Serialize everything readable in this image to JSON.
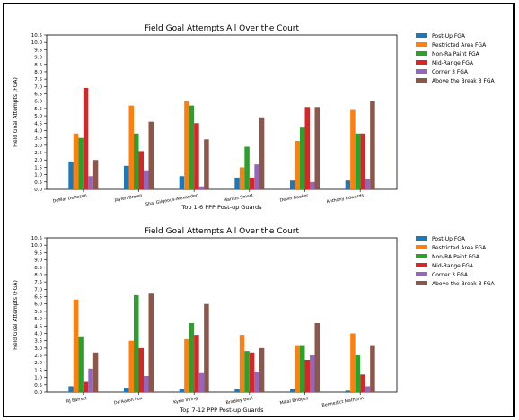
{
  "colors": {
    "series": [
      "#1f77b4",
      "#ff7f0e",
      "#2ca02c",
      "#d62728",
      "#9467bd",
      "#8c564b"
    ]
  },
  "chart_data": [
    {
      "type": "bar",
      "title": "Field Goal Attempts All Over the Court",
      "xlabel": "Top 1-6 PPP Post-up Guards",
      "ylabel": "Field Goal Attempts (FGA)",
      "ylim": [
        0,
        10.5
      ],
      "yticks": [
        "0.0",
        "0.5",
        "1.0",
        "1.5",
        "2.0",
        "2.5",
        "3.0",
        "3.5",
        "4.0",
        "4.5",
        "5.0",
        "5.5",
        "6.0",
        "6.5",
        "7.0",
        "7.5",
        "8.0",
        "8.5",
        "9.0",
        "9.5",
        "10.0",
        "10.5"
      ],
      "grid": false,
      "legend": "outside-right",
      "categories": [
        "DeMar DeRozan",
        "Jaylen Brown",
        "Shai Gilgeous-Alexander",
        "Marcus Smart",
        "Devin Booker",
        "Anthony Edwards"
      ],
      "series": [
        {
          "name": "Post-Up FGA",
          "values": [
            1.9,
            1.6,
            0.9,
            0.8,
            0.6,
            0.6
          ]
        },
        {
          "name": "Restricted Area FGA",
          "values": [
            3.8,
            5.7,
            6.0,
            1.5,
            3.3,
            5.4
          ]
        },
        {
          "name": "Non-Ra Paint FGA",
          "values": [
            3.5,
            3.8,
            5.7,
            2.9,
            4.2,
            3.8
          ]
        },
        {
          "name": "Mid-Range FGA",
          "values": [
            6.9,
            2.6,
            4.5,
            0.8,
            5.6,
            3.8
          ]
        },
        {
          "name": "Corner 3 FGA",
          "values": [
            0.9,
            1.3,
            0.2,
            1.7,
            0.5,
            0.7
          ]
        },
        {
          "name": "Above the Break 3 FGA",
          "values": [
            2.0,
            4.6,
            3.4,
            4.9,
            5.6,
            6.0
          ]
        }
      ]
    },
    {
      "type": "bar",
      "title": "Field Goal Attempts All Over the Court",
      "xlabel": "Top 7-12 PPP Post-up Guards",
      "ylabel": "Field Goal Attempts (FGA)",
      "ylim": [
        0,
        10.5
      ],
      "yticks": [
        "0.0",
        "0.5",
        "1.0",
        "1.5",
        "2.0",
        "2.5",
        "3.0",
        "3.5",
        "4.0",
        "4.5",
        "5.0",
        "5.5",
        "6.0",
        "6.5",
        "7.0",
        "7.5",
        "8.0",
        "8.5",
        "9.0",
        "9.5",
        "10.0",
        "10.5"
      ],
      "grid": false,
      "legend": "outside-right",
      "categories": [
        "RJ Barrett",
        "De'Aaron Fox",
        "Kyrie Irving",
        "Bradley Beal",
        "Mikal Bridges",
        "Bennedict Mathurin"
      ],
      "series": [
        {
          "name": "Post-Up FGA",
          "values": [
            0.4,
            0.3,
            0.2,
            0.2,
            0.2,
            0.1
          ]
        },
        {
          "name": "Restricted Area FGA",
          "values": [
            6.3,
            3.5,
            3.6,
            3.9,
            3.2,
            4.0
          ]
        },
        {
          "name": "Non-RA Paint FGA",
          "values": [
            3.8,
            6.6,
            4.7,
            2.8,
            3.2,
            2.5
          ]
        },
        {
          "name": "Mid-Range FGA",
          "values": [
            0.7,
            3.0,
            3.9,
            2.7,
            2.2,
            1.2
          ]
        },
        {
          "name": "Corner 3 FGA",
          "values": [
            1.6,
            1.1,
            1.3,
            1.4,
            2.5,
            0.4
          ]
        },
        {
          "name": "Above the Break 3 FGA",
          "values": [
            2.7,
            6.7,
            6.0,
            3.0,
            4.7,
            3.2
          ]
        }
      ]
    }
  ]
}
